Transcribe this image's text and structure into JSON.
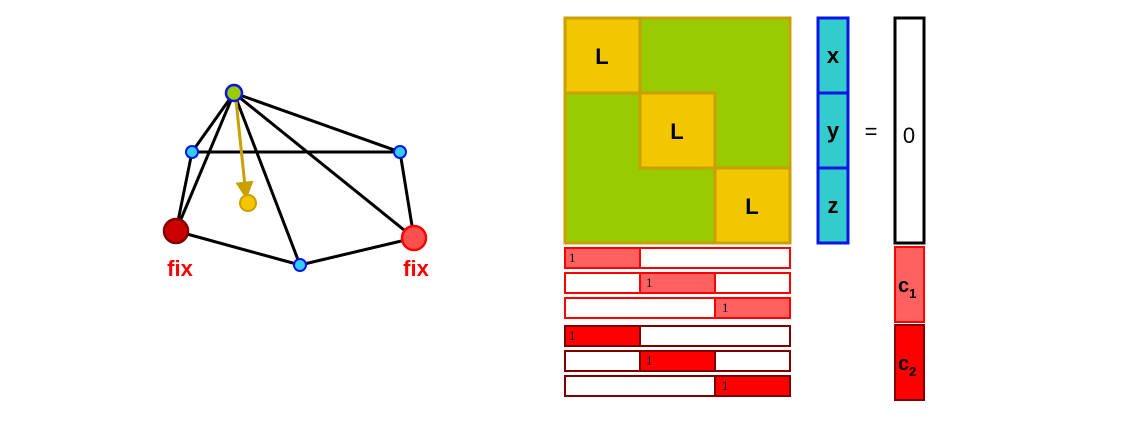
{
  "graph": {
    "fixed_labels": [
      "fix",
      "fix"
    ]
  },
  "matrix": {
    "block_labels": [
      "L",
      "L",
      "L"
    ],
    "constraint_ones": [
      "1",
      "1",
      "1",
      "1",
      "1",
      "1"
    ]
  },
  "vector": {
    "unknowns": [
      "x",
      "y",
      "z"
    ],
    "equals": "=",
    "rhs_zero": "0",
    "c1_base": "c",
    "c1_sub": "1",
    "c2_base": "c",
    "c2_sub": "2"
  },
  "colors": {
    "green": "#99cc00",
    "yellow": "#f2c600",
    "cyan": "#33cccc",
    "blue": "#0a14e6",
    "red_light": "#ff6060",
    "red": "#ff0000",
    "dark_red": "#800000",
    "arrow_gold": "#c8a000"
  }
}
